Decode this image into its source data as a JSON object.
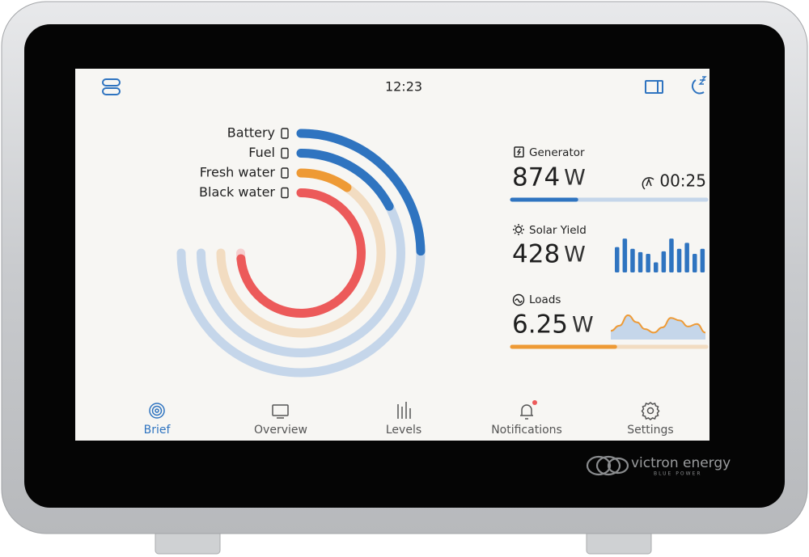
{
  "status_bar": {
    "time": "12:23"
  },
  "levels": [
    {
      "label": "Battery",
      "level": 33,
      "color": "#2f74c0",
      "track": "#c5d6ea"
    },
    {
      "label": "Fuel",
      "level": 23,
      "color": "#2f74c0",
      "track": "#c5d6ea"
    },
    {
      "label": "Fresh water",
      "level": 13,
      "color": "#ee9a35",
      "track": "#f2dcc1"
    },
    {
      "label": "Black water",
      "level": 98,
      "color": "#ec5a5a",
      "track": "#f6cfcf"
    }
  ],
  "generator": {
    "title": "Generator",
    "value": "874",
    "unit": "W",
    "runtime": "00:25",
    "progress": 33,
    "color": "#2f74c0",
    "track": "#c5d6ea"
  },
  "solar_yield": {
    "title": "Solar Yield",
    "value": "428",
    "unit": "W",
    "history": [
      30,
      40,
      28,
      24,
      22,
      12,
      25,
      40,
      28,
      35,
      22,
      28
    ],
    "color": "#2f74c0"
  },
  "loads": {
    "title": "Loads",
    "value": "6.25",
    "unit": "W",
    "history": [
      10,
      16,
      28,
      20,
      12,
      8,
      14,
      25,
      22,
      15,
      18,
      8
    ],
    "progress": 53,
    "color": "#ee9a35",
    "track": "#f2dcc1"
  },
  "nav": [
    "Brief",
    "Overview",
    "Levels",
    "Notifications",
    "Settings"
  ],
  "brand": {
    "name": "victron energy",
    "tagline": "BLUE POWER"
  }
}
